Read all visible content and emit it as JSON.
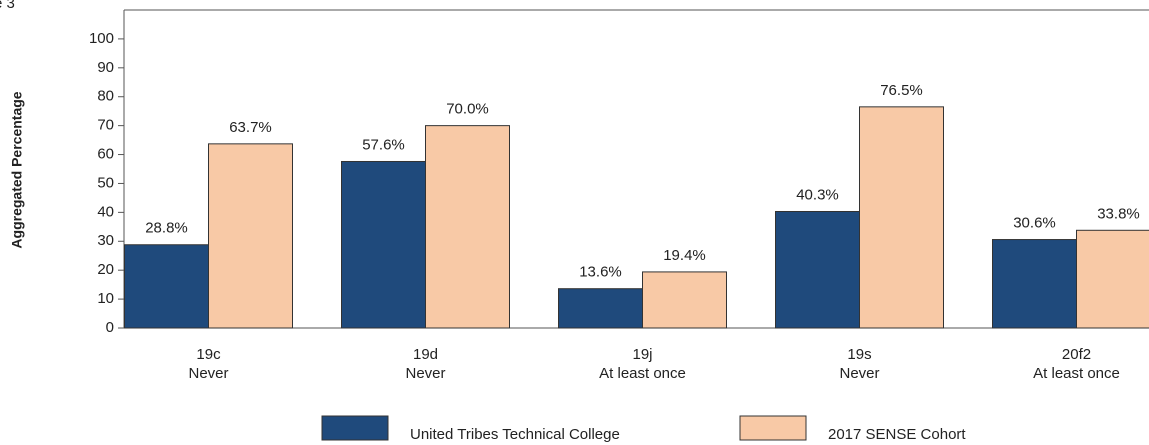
{
  "chart_data": {
    "type": "bar",
    "title": "e 3",
    "y_label": "Aggregated Percentage",
    "categories": [
      [
        "19c",
        "Never"
      ],
      [
        "19d",
        "Never"
      ],
      [
        "19j",
        "At least once"
      ],
      [
        "19s",
        "Never"
      ],
      [
        "20f2",
        "At least once"
      ]
    ],
    "series": [
      {
        "name": "United Tribes Technical College",
        "color": "#1f4a7c",
        "values": [
          28.8,
          57.6,
          13.6,
          40.3,
          30.6
        ],
        "value_labels": [
          "28.8%",
          "57.6%",
          "13.6%",
          "40.3%",
          "30.6%"
        ]
      },
      {
        "name": "2017 SENSE Cohort",
        "color": "#f8c9a6",
        "values": [
          63.7,
          70.0,
          19.4,
          76.5,
          33.8
        ],
        "value_labels": [
          "63.7%",
          "70.0%",
          "19.4%",
          "76.5%",
          "33.8%"
        ]
      }
    ],
    "ylim": [
      0,
      110
    ],
    "yticks": [
      0,
      10,
      20,
      30,
      40,
      50,
      60,
      70,
      80,
      90,
      100
    ],
    "grid": false
  }
}
